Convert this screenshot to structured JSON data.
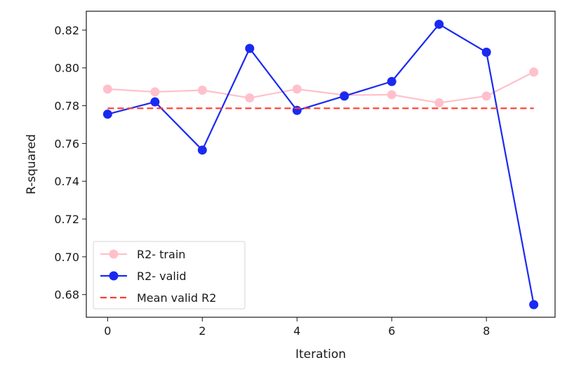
{
  "chart_data": {
    "type": "line",
    "xlabel": "Iteration",
    "ylabel": "R-squared",
    "xlim": [
      -0.45,
      9.45
    ],
    "ylim": [
      0.668,
      0.83
    ],
    "xticks": [
      0,
      2,
      4,
      6,
      8
    ],
    "yticks": [
      0.68,
      0.7,
      0.72,
      0.74,
      0.76,
      0.78,
      0.8,
      0.82
    ],
    "grid": false,
    "legend_position": "lower-left",
    "series": [
      {
        "name": "R2- train",
        "color": "#ffc0cb",
        "style": "line-marker",
        "x": [
          0,
          1,
          2,
          3,
          4,
          5,
          6,
          7,
          8,
          9
        ],
        "y": [
          0.7888,
          0.7873,
          0.7882,
          0.7841,
          0.7888,
          0.7856,
          0.7858,
          0.7815,
          0.7851,
          0.7978
        ]
      },
      {
        "name": "R2- valid",
        "color": "#1a2af0",
        "style": "line-marker",
        "x": [
          0,
          1,
          2,
          3,
          4,
          5,
          6,
          7,
          8,
          9
        ],
        "y": [
          0.7755,
          0.782,
          0.7565,
          0.8103,
          0.7775,
          0.7851,
          0.7928,
          0.8231,
          0.8083,
          0.6747
        ]
      },
      {
        "name": "Mean valid R2",
        "color": "#ff3b30",
        "style": "dashed",
        "x": [
          0,
          9
        ],
        "y": [
          0.7786,
          0.7786
        ]
      }
    ]
  }
}
